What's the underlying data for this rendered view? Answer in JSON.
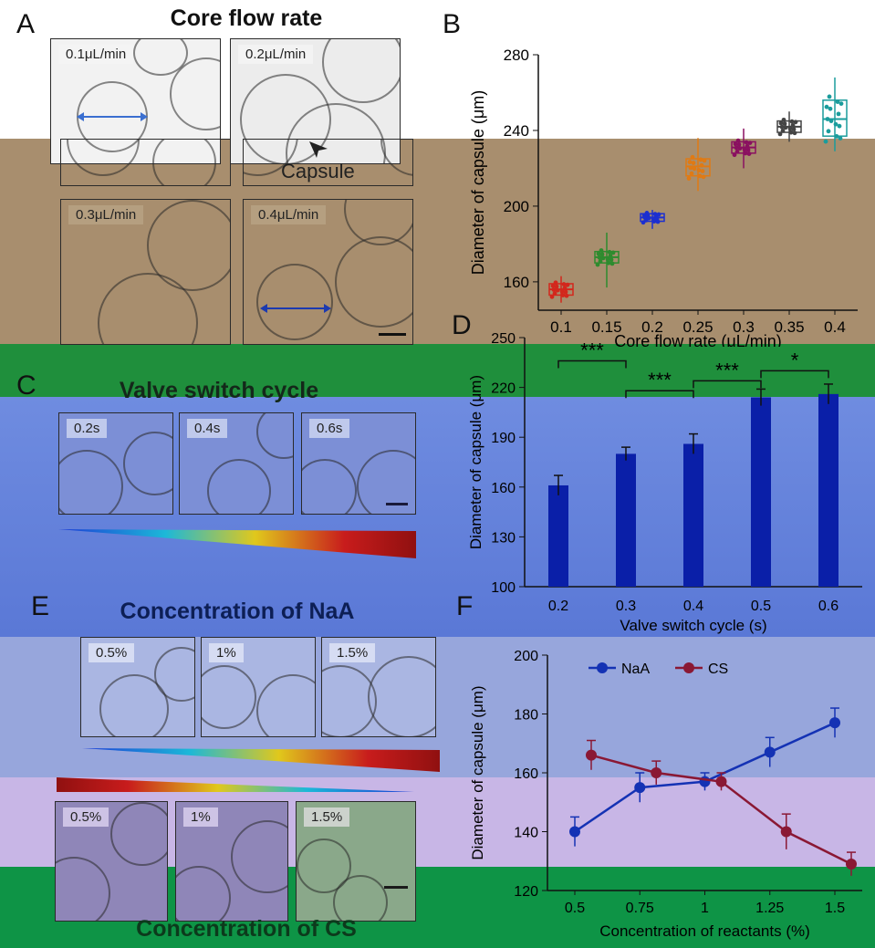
{
  "panels": {
    "A": {
      "letter": "A",
      "title": "Core flow rate",
      "tiles": [
        "0.1μL/min",
        "0.2μL/min",
        "0.3μL/min",
        "0.4μL/min"
      ],
      "annotation": "Capsule"
    },
    "C": {
      "letter": "C",
      "title": "Valve switch cycle",
      "tiles": [
        "0.2s",
        "0.4s",
        "0.6s"
      ]
    },
    "E": {
      "letter": "E",
      "title_top": "Concentration of NaA",
      "title_bottom": "Concentration of CS",
      "tiles_top": [
        "0.5%",
        "1%",
        "1.5%"
      ],
      "tiles_bottom": [
        "0.5%",
        "1%",
        "1.5%"
      ]
    }
  },
  "colors": {
    "band_tan": "#a88e6e",
    "band_green": "#1f8f3c",
    "band_blue": "#5a78d6",
    "band_lavender": "#c8b6e6",
    "band_green_bottom": "#0e9446",
    "bar_blue": "#0a1fa8",
    "naa_line": "#1432b4",
    "cs_line": "#8a1834"
  },
  "chart_data": [
    {
      "panel": "B",
      "type": "box",
      "title": "",
      "xlabel": "Core flow rate (μL/min)",
      "ylabel": "Diameter of capsule (μm)",
      "categories": [
        "0.1",
        "0.15",
        "0.2",
        "0.25",
        "0.3",
        "0.35",
        "0.4"
      ],
      "medians": [
        156,
        173,
        194,
        221,
        231,
        242,
        246
      ],
      "q1": [
        153,
        170,
        192,
        216,
        228,
        239,
        237
      ],
      "q3": [
        159,
        176,
        196,
        225,
        234,
        245,
        256
      ],
      "whisker_low": [
        149,
        157,
        188,
        208,
        220,
        234,
        229
      ],
      "whisker_high": [
        163,
        186,
        198,
        236,
        241,
        250,
        268
      ],
      "colors": [
        "#d3271c",
        "#2e8b2e",
        "#1c2fd0",
        "#e07a14",
        "#8a1060",
        "#444444",
        "#1a9c9c"
      ],
      "ylim": [
        145,
        280
      ],
      "yticks": [
        160,
        200,
        240,
        280
      ]
    },
    {
      "panel": "D",
      "type": "bar",
      "title": "",
      "xlabel": "Valve switch cycle (s)",
      "ylabel": "Diameter of capsule (μm)",
      "categories": [
        "0.2",
        "0.3",
        "0.4",
        "0.5",
        "0.6"
      ],
      "values": [
        161,
        180,
        186,
        214,
        216
      ],
      "errors": [
        6,
        4,
        6,
        5,
        6
      ],
      "ylim": [
        100,
        250
      ],
      "yticks": [
        100,
        130,
        160,
        190,
        220,
        250
      ],
      "significance": [
        {
          "from": 0,
          "to": 1,
          "label": "***",
          "y": 236
        },
        {
          "from": 1,
          "to": 2,
          "label": "***",
          "y": 218
        },
        {
          "from": 2,
          "to": 3,
          "label": "***",
          "y": 224
        },
        {
          "from": 3,
          "to": 4,
          "label": "*",
          "y": 230
        }
      ]
    },
    {
      "panel": "F",
      "type": "line",
      "title": "",
      "xlabel": "Concentration of reactants (%)",
      "ylabel": "Diameter of capsule (μm)",
      "xticks": [
        "0.5",
        "0.75",
        "1",
        "1.25",
        "1.5"
      ],
      "ylim": [
        120,
        200
      ],
      "yticks": [
        120,
        140,
        160,
        180,
        200
      ],
      "series": [
        {
          "name": "NaA",
          "x": [
            0.5,
            0.75,
            1.0,
            1.25,
            1.5
          ],
          "y": [
            140,
            155,
            157,
            167,
            177
          ],
          "err": [
            5,
            5,
            3,
            5,
            5
          ]
        },
        {
          "name": "CS",
          "x": [
            0.5,
            0.75,
            1.0,
            1.25,
            1.5
          ],
          "y": [
            166,
            160,
            157,
            140,
            129
          ],
          "err": [
            5,
            4,
            3,
            6,
            4
          ]
        }
      ],
      "legend": "top"
    }
  ]
}
